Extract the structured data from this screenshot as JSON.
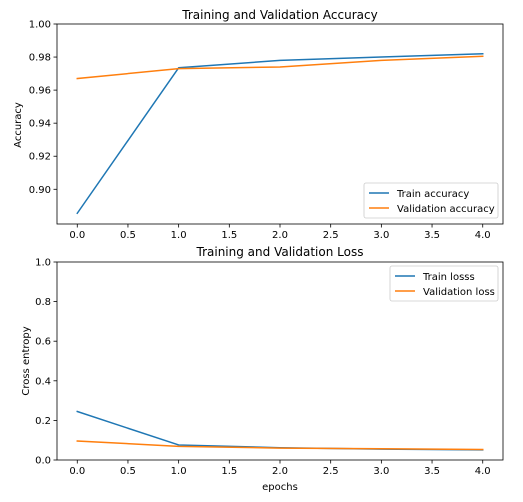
{
  "chart_data": [
    {
      "type": "line",
      "title": "Training and Validation Accuracy",
      "xlabel": "",
      "ylabel": "Accuracy",
      "xlim": [
        -0.2,
        4.2
      ],
      "ylim": [
        0.879,
        1.0
      ],
      "xticks": [
        0.0,
        0.5,
        1.0,
        1.5,
        2.0,
        2.5,
        3.0,
        3.5,
        4.0
      ],
      "xtick_labels": [
        "0.0",
        "0.5",
        "1.0",
        "1.5",
        "2.0",
        "2.5",
        "3.0",
        "3.5",
        "4.0"
      ],
      "yticks": [
        0.9,
        0.92,
        0.94,
        0.96,
        0.98,
        1.0
      ],
      "ytick_labels": [
        "0.90",
        "0.92",
        "0.94",
        "0.96",
        "0.98",
        "1.00"
      ],
      "legend": "lower-right",
      "grid": false,
      "x": [
        0,
        1,
        2,
        3,
        4
      ],
      "series": [
        {
          "name": "Train accuracy",
          "color": "#1f77b4",
          "values": [
            0.8855,
            0.9735,
            0.978,
            0.98,
            0.982
          ]
        },
        {
          "name": "Validation accuracy",
          "color": "#ff7f0e",
          "values": [
            0.967,
            0.973,
            0.974,
            0.978,
            0.9805
          ]
        }
      ]
    },
    {
      "type": "line",
      "title": "Training and Validation Loss",
      "xlabel": "epochs",
      "ylabel": "Cross entropy",
      "xlim": [
        -0.2,
        4.2
      ],
      "ylim": [
        0.0,
        1.0
      ],
      "xticks": [
        0.0,
        0.5,
        1.0,
        1.5,
        2.0,
        2.5,
        3.0,
        3.5,
        4.0
      ],
      "xtick_labels": [
        "0.0",
        "0.5",
        "1.0",
        "1.5",
        "2.0",
        "2.5",
        "3.0",
        "3.5",
        "4.0"
      ],
      "yticks": [
        0.0,
        0.2,
        0.4,
        0.6,
        0.8,
        1.0
      ],
      "ytick_labels": [
        "0.0",
        "0.2",
        "0.4",
        "0.6",
        "0.8",
        "1.0"
      ],
      "legend": "top-right",
      "grid": false,
      "x": [
        0,
        1,
        2,
        3,
        4
      ],
      "series": [
        {
          "name": "Train losss",
          "color": "#1f77b4",
          "values": [
            0.245,
            0.076,
            0.062,
            0.055,
            0.051
          ]
        },
        {
          "name": "Validation loss",
          "color": "#ff7f0e",
          "values": [
            0.096,
            0.069,
            0.06,
            0.057,
            0.053
          ]
        }
      ]
    }
  ]
}
